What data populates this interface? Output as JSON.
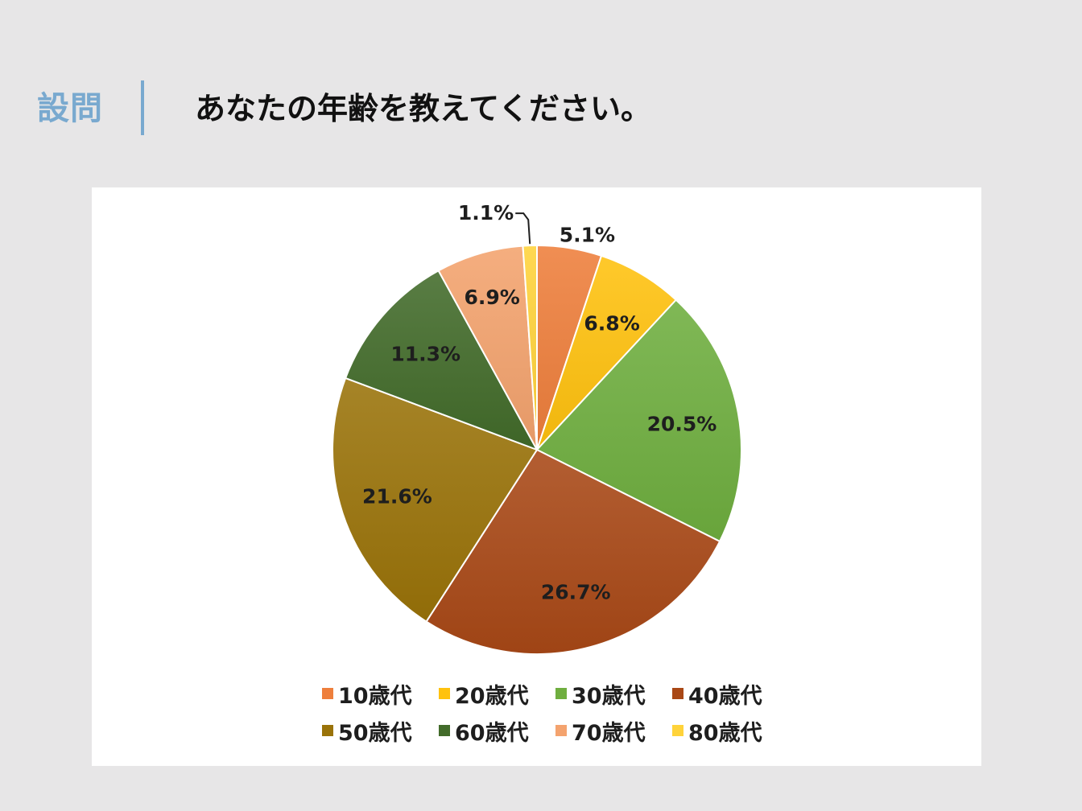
{
  "header": {
    "question_label": "設問",
    "question_text": "あなたの年齢を教えてください。"
  },
  "chart_data": {
    "type": "pie",
    "categories": [
      "10歳代",
      "20歳代",
      "30歳代",
      "40歳代",
      "50歳代",
      "60歳代",
      "70歳代",
      "80歳代"
    ],
    "values": [
      5.1,
      6.8,
      20.5,
      26.7,
      21.6,
      11.3,
      6.9,
      1.1
    ],
    "data_labels": [
      "5.1%",
      "6.8%",
      "20.5%",
      "26.7%",
      "21.6%",
      "11.3%",
      "6.9%",
      "1.1%"
    ],
    "colors": [
      "#ee7f3c",
      "#ffc20e",
      "#6fae3f",
      "#a94816",
      "#9a7309",
      "#426b2a",
      "#f4a36e",
      "#ffd33a"
    ],
    "start_angle_deg": 0,
    "direction": "clockwise",
    "legend_position": "bottom"
  }
}
